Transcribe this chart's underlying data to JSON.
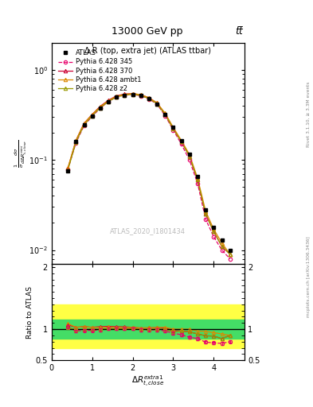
{
  "title_top": "13000 GeV pp",
  "title_top_right": "tt̅",
  "plot_title": "Δ R (top, extra jet) (ATLAS ttbar)",
  "ylabel_main": "$\\frac{1}{\\sigma}\\frac{d\\sigma}{d\\Delta R_{t,close}^{mini}}$",
  "xlabel": "$\\Delta R_{t,close}^{extra1}$",
  "ylabel_ratio": "Ratio to ATLAS",
  "watermark": "ATLAS_2020_I1801434",
  "right_label_top": "Rivet 3.1.10, ≥ 3.3M events",
  "right_label_bot": "mcplots.cern.ch [arXiv:1306.3436]",
  "x_data": [
    0.4,
    0.6,
    0.8,
    1.0,
    1.2,
    1.4,
    1.6,
    1.8,
    2.0,
    2.2,
    2.4,
    2.6,
    2.8,
    3.0,
    3.2,
    3.4,
    3.6,
    3.8,
    4.0,
    4.2,
    4.4
  ],
  "atlas_y": [
    0.075,
    0.16,
    0.245,
    0.31,
    0.38,
    0.44,
    0.495,
    0.52,
    0.53,
    0.52,
    0.48,
    0.42,
    0.32,
    0.23,
    0.165,
    0.115,
    0.065,
    0.028,
    0.018,
    0.013,
    0.01
  ],
  "p345_y": [
    0.078,
    0.155,
    0.24,
    0.305,
    0.375,
    0.445,
    0.5,
    0.525,
    0.535,
    0.515,
    0.475,
    0.415,
    0.31,
    0.215,
    0.15,
    0.1,
    0.055,
    0.022,
    0.014,
    0.01,
    0.008
  ],
  "p370_y": [
    0.08,
    0.165,
    0.255,
    0.32,
    0.395,
    0.46,
    0.515,
    0.54,
    0.545,
    0.53,
    0.49,
    0.43,
    0.325,
    0.225,
    0.16,
    0.11,
    0.06,
    0.025,
    0.016,
    0.011,
    0.009
  ],
  "pambt1_y": [
    0.082,
    0.165,
    0.255,
    0.32,
    0.39,
    0.455,
    0.51,
    0.535,
    0.545,
    0.53,
    0.49,
    0.43,
    0.33,
    0.23,
    0.165,
    0.115,
    0.063,
    0.027,
    0.017,
    0.012,
    0.009
  ],
  "pz2_y": [
    0.077,
    0.158,
    0.245,
    0.31,
    0.38,
    0.445,
    0.5,
    0.525,
    0.535,
    0.52,
    0.48,
    0.42,
    0.32,
    0.22,
    0.16,
    0.11,
    0.06,
    0.025,
    0.016,
    0.011,
    0.009
  ],
  "ratio_345": [
    1.04,
    0.97,
    0.98,
    0.98,
    0.987,
    1.01,
    1.01,
    1.01,
    1.009,
    0.99,
    0.99,
    0.988,
    0.97,
    0.935,
    0.91,
    0.87,
    0.85,
    0.79,
    0.78,
    0.77,
    0.8
  ],
  "ratio_370": [
    1.07,
    1.03,
    1.04,
    1.03,
    1.04,
    1.045,
    1.04,
    1.038,
    1.028,
    1.019,
    1.021,
    1.024,
    1.016,
    0.978,
    0.97,
    0.957,
    0.923,
    0.893,
    0.89,
    0.846,
    0.9
  ],
  "ratio_ambt1": [
    1.09,
    1.03,
    1.04,
    1.03,
    1.026,
    1.034,
    1.03,
    1.029,
    1.028,
    1.019,
    1.021,
    1.024,
    1.031,
    1.0,
    1.0,
    1.0,
    0.969,
    0.964,
    0.944,
    0.923,
    0.9
  ],
  "ratio_z2": [
    1.03,
    0.99,
    1.0,
    1.0,
    1.0,
    1.011,
    1.01,
    1.009,
    1.009,
    1.0,
    1.0,
    1.0,
    1.0,
    0.957,
    0.97,
    0.957,
    0.923,
    0.893,
    0.89,
    0.846,
    0.9
  ],
  "color_345": "#e8006a",
  "color_370": "#cc0033",
  "color_ambt1": "#dd8800",
  "color_z2": "#999900",
  "ylim_main": [
    0.007,
    2.0
  ],
  "ylim_ratio": [
    0.5,
    2.05
  ],
  "xlim": [
    0.0,
    4.75
  ]
}
